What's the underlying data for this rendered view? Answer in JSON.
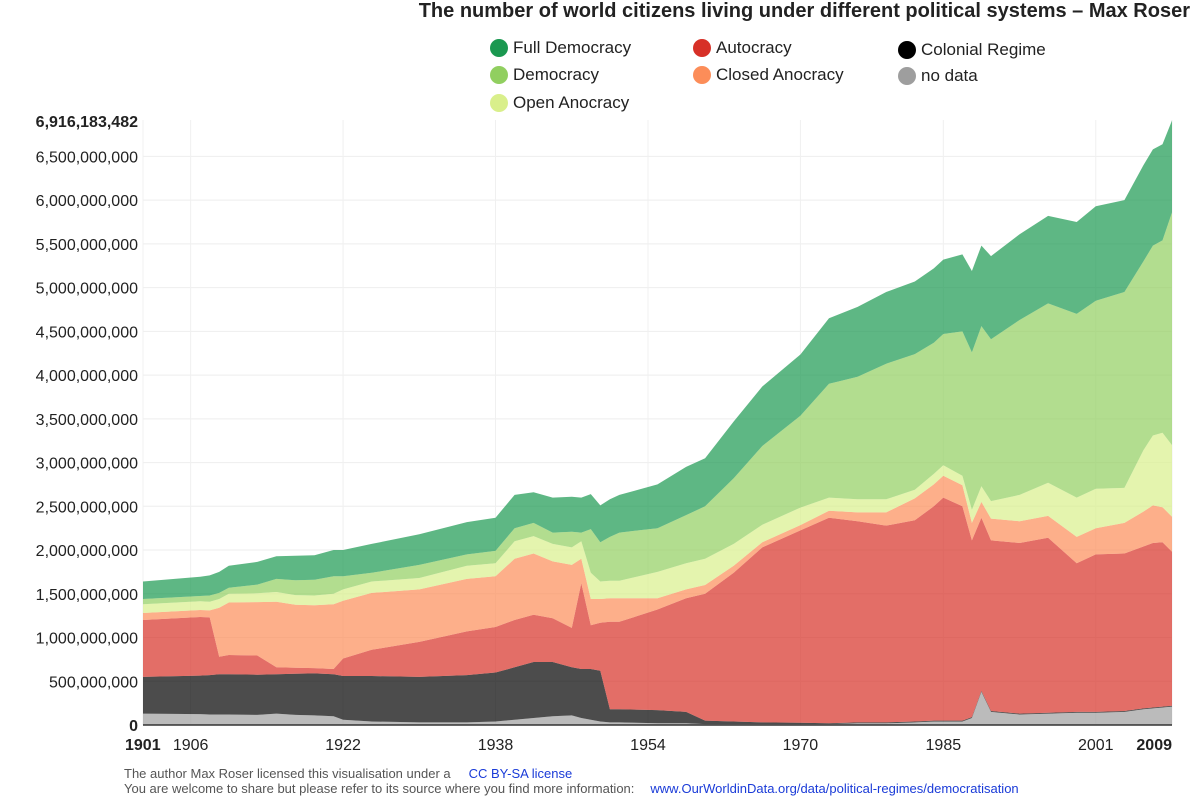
{
  "chart_data": {
    "type": "area",
    "stacked": true,
    "title": "The number of world citizens living under different political systems – Max Roser",
    "xlabel": "",
    "ylabel": "",
    "xlim": [
      1901,
      2009
    ],
    "ylim": [
      0,
      6916183482
    ],
    "y_max_label": "6,916,183,482",
    "x_ticks": [
      {
        "value": 1901,
        "label": "1901",
        "bold": true
      },
      {
        "value": 1906,
        "label": "1906"
      },
      {
        "value": 1922,
        "label": "1922"
      },
      {
        "value": 1938,
        "label": "1938"
      },
      {
        "value": 1954,
        "label": "1954"
      },
      {
        "value": 1970,
        "label": "1970"
      },
      {
        "value": 1985,
        "label": "1985"
      },
      {
        "value": 2001,
        "label": "2001"
      },
      {
        "value": 2009,
        "label": "2009",
        "bold": true
      }
    ],
    "y_ticks": [
      {
        "value": 0,
        "label": "0"
      },
      {
        "value": 500000000,
        "label": "500,000,000"
      },
      {
        "value": 1000000000,
        "label": "1,000,000,000"
      },
      {
        "value": 1500000000,
        "label": "1,500,000,000"
      },
      {
        "value": 2000000000,
        "label": "2,000,000,000"
      },
      {
        "value": 2500000000,
        "label": "2,500,000,000"
      },
      {
        "value": 3000000000,
        "label": "3,000,000,000"
      },
      {
        "value": 3500000000,
        "label": "3,500,000,000"
      },
      {
        "value": 4000000000,
        "label": "4,000,000,000"
      },
      {
        "value": 4500000000,
        "label": "4,500,000,000"
      },
      {
        "value": 5000000000,
        "label": "5,000,000,000"
      },
      {
        "value": 5500000000,
        "label": "5,500,000,000"
      },
      {
        "value": 6000000000,
        "label": "6,000,000,000"
      },
      {
        "value": 6500000000,
        "label": "6,500,000,000"
      }
    ],
    "grid": true,
    "legend_position": "top",
    "x": [
      1901,
      1907,
      1908,
      1909,
      1910,
      1913,
      1915,
      1917,
      1919,
      1921,
      1922,
      1925,
      1930,
      1935,
      1938,
      1940,
      1942,
      1944,
      1946,
      1947,
      1948,
      1949,
      1950,
      1951,
      1955,
      1958,
      1960,
      1963,
      1966,
      1970,
      1973,
      1976,
      1979,
      1982,
      1984,
      1985,
      1987,
      1988,
      1989,
      1990,
      1993,
      1996,
      1999,
      2001,
      2004,
      2006,
      2007,
      2008,
      2009
    ],
    "series": [
      {
        "name": "no data",
        "color": "#9e9e9e",
        "values": [
          130,
          125,
          120,
          120,
          120,
          115,
          130,
          115,
          110,
          100,
          60,
          40,
          30,
          30,
          40,
          60,
          80,
          100,
          110,
          80,
          60,
          40,
          30,
          30,
          20,
          20,
          10,
          10,
          10,
          10,
          10,
          20,
          20,
          30,
          40,
          40,
          40,
          80,
          380,
          150,
          120,
          130,
          140,
          140,
          150,
          180,
          190,
          200,
          210
        ]
      },
      {
        "name": "Colonial Regime",
        "color": "#000000",
        "values": [
          420,
          440,
          450,
          460,
          460,
          460,
          450,
          470,
          480,
          480,
          500,
          520,
          520,
          540,
          560,
          600,
          640,
          620,
          550,
          560,
          580,
          580,
          150,
          150,
          150,
          130,
          40,
          30,
          20,
          15,
          10,
          10,
          10,
          10,
          10,
          10,
          10,
          10,
          10,
          10,
          10,
          10,
          10,
          10,
          10,
          10,
          10,
          10,
          10
        ]
      },
      {
        "name": "Autocracy",
        "color": "#d73027",
        "values": [
          650,
          670,
          660,
          200,
          220,
          220,
          80,
          70,
          60,
          60,
          200,
          300,
          400,
          500,
          520,
          540,
          540,
          500,
          450,
          980,
          500,
          550,
          1000,
          1000,
          1150,
          1300,
          1450,
          1700,
          2000,
          2200,
          2350,
          2300,
          2250,
          2300,
          2450,
          2550,
          2450,
          2020,
          1980,
          1950,
          1950,
          2000,
          1700,
          1800,
          1800,
          1850,
          1880,
          1880,
          1760
        ]
      },
      {
        "name": "Closed Anocracy",
        "color": "#fc8d59",
        "values": [
          80,
          80,
          80,
          560,
          600,
          610,
          750,
          720,
          720,
          740,
          660,
          650,
          600,
          600,
          580,
          700,
          700,
          650,
          720,
          280,
          300,
          270,
          270,
          270,
          130,
          100,
          100,
          80,
          60,
          60,
          80,
          100,
          150,
          250,
          250,
          250,
          240,
          200,
          180,
          250,
          250,
          250,
          300,
          300,
          350,
          400,
          430,
          400,
          400
        ]
      },
      {
        "name": "Open Anocracy",
        "color": "#d9ef8b",
        "values": [
          100,
          100,
          100,
          100,
          100,
          100,
          110,
          110,
          110,
          120,
          130,
          130,
          130,
          150,
          150,
          200,
          200,
          200,
          200,
          200,
          300,
          200,
          200,
          200,
          300,
          300,
          300,
          250,
          200,
          200,
          150,
          150,
          150,
          100,
          120,
          120,
          110,
          150,
          180,
          200,
          300,
          380,
          450,
          450,
          400,
          700,
          800,
          850,
          820
        ]
      },
      {
        "name": "Democracy",
        "color": "#91cf60",
        "values": [
          60,
          60,
          70,
          70,
          70,
          100,
          150,
          170,
          180,
          200,
          150,
          100,
          150,
          130,
          140,
          150,
          150,
          130,
          180,
          100,
          500,
          450,
          500,
          550,
          500,
          550,
          600,
          750,
          900,
          1050,
          1300,
          1400,
          1550,
          1550,
          1500,
          1500,
          1650,
          1800,
          1830,
          1850,
          2000,
          2050,
          2100,
          2150,
          2240,
          2160,
          2170,
          2200,
          2660
        ]
      },
      {
        "name": "Full Democracy",
        "color": "#1a9850",
        "values": [
          200,
          220,
          230,
          240,
          250,
          260,
          260,
          280,
          280,
          300,
          300,
          330,
          350,
          370,
          380,
          380,
          350,
          400,
          400,
          400,
          400,
          420,
          430,
          430,
          500,
          550,
          550,
          650,
          680,
          700,
          750,
          800,
          820,
          830,
          850,
          850,
          880,
          930,
          920,
          950,
          980,
          1000,
          1050,
          1080,
          1050,
          1100,
          1100,
          1100,
          1050
        ]
      }
    ]
  },
  "legend": [
    {
      "label": "Full Democracy",
      "color": "#1a9850"
    },
    {
      "label": "Autocracy",
      "color": "#d73027"
    },
    {
      "label": "Colonial Regime",
      "color": "#000000"
    },
    {
      "label": "Democracy",
      "color": "#91cf60"
    },
    {
      "label": "Closed Anocracy",
      "color": "#fc8d59"
    },
    {
      "label": "no data",
      "color": "#9e9e9e"
    },
    {
      "label": "Open Anocracy",
      "color": "#d9ef8b"
    }
  ],
  "footer": {
    "line1_text": "The author Max Roser licensed this visualisation under a",
    "license_link": "CC BY-SA license",
    "line2_text": "You are welcome to share but please refer to its source where you find more information:",
    "source_link": "www.OurWorldinData.org/data/political-regimes/democratisation"
  }
}
